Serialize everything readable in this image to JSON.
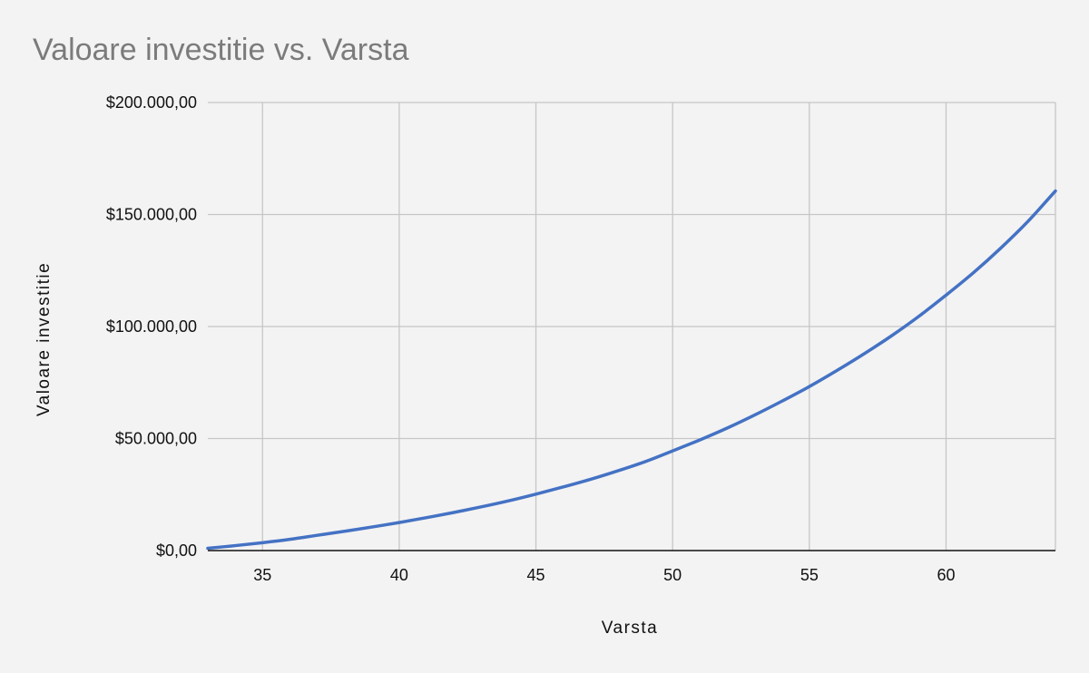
{
  "chart_data": {
    "type": "line",
    "title": "Valoare investitie vs. Varsta",
    "xlabel": "Varsta",
    "ylabel": "Valoare investitie",
    "xlim": [
      33,
      64
    ],
    "ylim": [
      0,
      200000
    ],
    "x_ticks": [
      35,
      40,
      45,
      50,
      55,
      60
    ],
    "y_ticks": [
      0,
      50000,
      100000,
      150000,
      200000
    ],
    "y_tick_labels": [
      "$0,00",
      "$50.000,00",
      "$100.000,00",
      "$150.000,00",
      "$200.000,00"
    ],
    "grid": true,
    "legend": "none",
    "series": [
      {
        "color": "#4472c4",
        "x": [
          33,
          34,
          35,
          36,
          37,
          38,
          39,
          40,
          41,
          42,
          43,
          44,
          45,
          46,
          47,
          48,
          49,
          50,
          51,
          52,
          53,
          54,
          55,
          56,
          57,
          58,
          59,
          60,
          61,
          62,
          63,
          64
        ],
        "y": [
          1000,
          2200,
          3500,
          5000,
          6800,
          8600,
          10500,
          12500,
          14700,
          17000,
          19500,
          22200,
          25200,
          28400,
          31800,
          35600,
          39700,
          44500,
          49400,
          54700,
          60500,
          66700,
          73200,
          80300,
          87800,
          95800,
          104500,
          114000,
          124000,
          135000,
          147000,
          160500
        ]
      }
    ]
  }
}
